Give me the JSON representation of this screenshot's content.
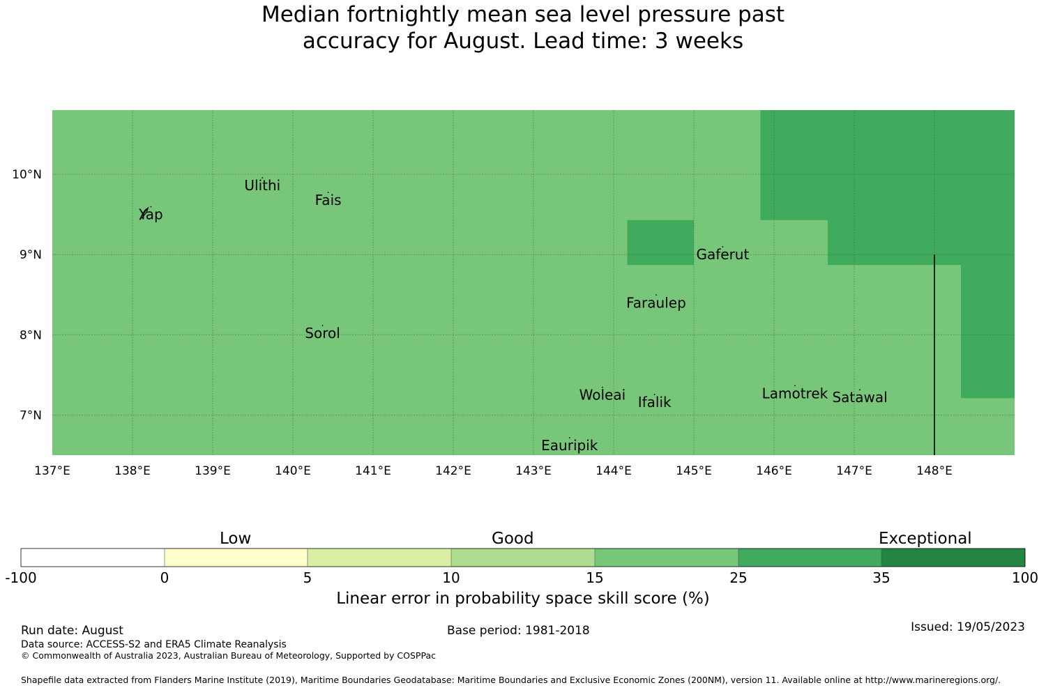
{
  "title": {
    "line1": "Median fortnightly mean sea level pressure past",
    "line2": "accuracy for August. Lead time: 3 weeks"
  },
  "map": {
    "lon_range": [
      137,
      149
    ],
    "lat_range": [
      6.5,
      10.8
    ],
    "lon_ticks": [
      137,
      138,
      139,
      140,
      141,
      142,
      143,
      144,
      145,
      146,
      147,
      148
    ],
    "lon_tick_labels": [
      "137°E",
      "138°E",
      "139°E",
      "140°E",
      "141°E",
      "142°E",
      "143°E",
      "144°E",
      "145°E",
      "146°E",
      "147°E",
      "148°E"
    ],
    "lat_ticks": [
      10,
      9,
      8,
      7
    ],
    "lat_tick_labels": [
      "10°N",
      "9°N",
      "8°N",
      "7°N"
    ],
    "background_color": "#78c679",
    "regions": [
      {
        "category": "25 to 35",
        "color": "#41ab5d",
        "polygon": [
          [
            145.83,
            10.8
          ],
          [
            149,
            10.8
          ],
          [
            149,
            7.21
          ],
          [
            148.33,
            7.21
          ],
          [
            148.33,
            8.87
          ],
          [
            146.67,
            8.87
          ],
          [
            146.67,
            9.43
          ],
          [
            145.83,
            9.43
          ]
        ]
      },
      {
        "category": "25 to 35",
        "color": "#41ab5d",
        "polygon": [
          [
            144.17,
            9.43
          ],
          [
            145.0,
            9.43
          ],
          [
            145.0,
            8.87
          ],
          [
            144.17,
            8.87
          ]
        ]
      }
    ],
    "boundary_line": {
      "lon": 148,
      "lat_from": 6.5,
      "lat_to": 9.0
    },
    "places": [
      {
        "name": "Yap",
        "lon": 138.23,
        "lat": 9.5
      },
      {
        "name": "Ulithi",
        "lon": 139.62,
        "lat": 9.86
      },
      {
        "name": "Fais",
        "lon": 140.44,
        "lat": 9.68
      },
      {
        "name": "Gaferut",
        "lon": 145.36,
        "lat": 9.0
      },
      {
        "name": "Faraulep",
        "lon": 144.53,
        "lat": 8.4
      },
      {
        "name": "Sorol",
        "lon": 140.37,
        "lat": 8.02
      },
      {
        "name": "Woleai",
        "lon": 143.86,
        "lat": 7.25
      },
      {
        "name": "Ifalik",
        "lon": 144.51,
        "lat": 7.16
      },
      {
        "name": "Lamotrek",
        "lon": 146.26,
        "lat": 7.27
      },
      {
        "name": "Satawal",
        "lon": 147.07,
        "lat": 7.22
      },
      {
        "name": "Eauripik",
        "lon": 143.45,
        "lat": 6.62
      }
    ]
  },
  "colorbar": {
    "categories": [
      "Low",
      "Good",
      "Exceptional"
    ],
    "ticks": [
      "-100",
      "0",
      "5",
      "10",
      "15",
      "25",
      "35",
      "100"
    ],
    "colors": [
      "#ffffff",
      "#ffffcc",
      "#d9f0a3",
      "#addd8e",
      "#78c679",
      "#41ab5d",
      "#238443"
    ],
    "label": "Linear error in probability space skill score (%)"
  },
  "footer": {
    "run_date": "Run date: August",
    "base_period": "Base period: 1981-2018",
    "issued": "Issued: 19/05/2023",
    "data_source": "Data source: ACCESS-S2 and ERA5 Climate Reanalysis",
    "copyright": "© Commonwealth of Australia 2023, Australian Bureau of Meteorology, Supported by COSPPac",
    "shapefile": "Shapefile data extracted from Flanders Marine Institute (2019), Maritime Boundaries Geodatabase: Maritime Boundaries and Exclusive Economic Zones (200NM), version 11. Available online at http://www.marineregions.org/."
  }
}
